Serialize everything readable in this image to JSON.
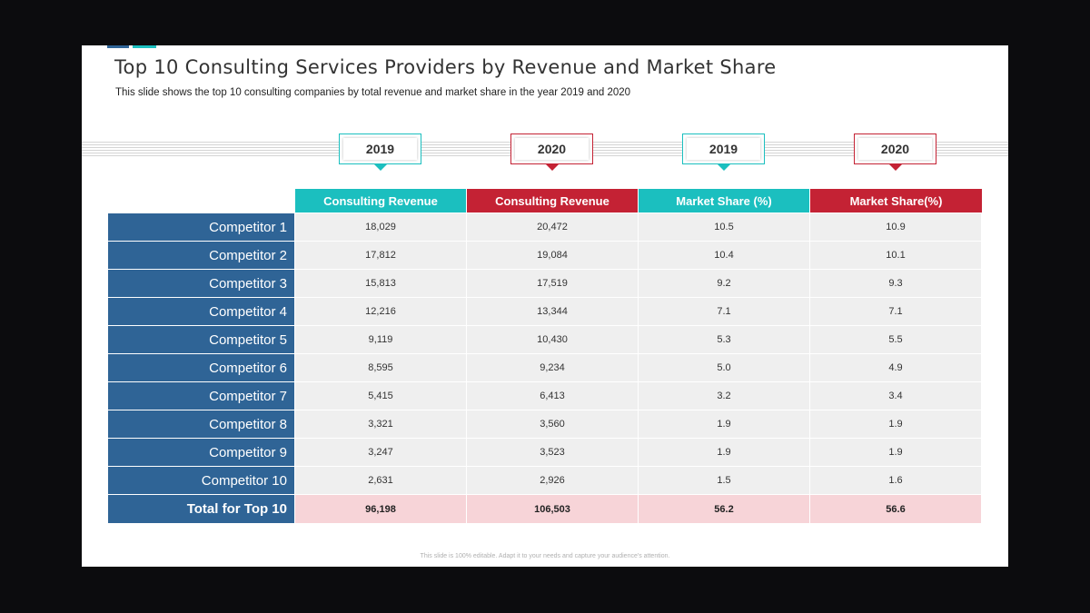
{
  "slide": {
    "title": "Top 10 Consulting Services Providers by Revenue and Market Share",
    "subtitle": "This slide shows the top 10 consulting companies by total revenue and market share in the year 2019 and 2020",
    "footer": "This slide is 100% editable. Adapt it to your needs and capture your audience's attention."
  },
  "colors": {
    "teal": "#1bbfbf",
    "red": "#c42234",
    "blue": "#2f6496",
    "total_fill": "#f7d4d8"
  },
  "table": {
    "columns": [
      {
        "year": "2019",
        "header": "Consulting Revenue",
        "color": "teal"
      },
      {
        "year": "2020",
        "header": "Consulting Revenue",
        "color": "red"
      },
      {
        "year": "2019",
        "header": "Market Share (%)",
        "color": "teal"
      },
      {
        "year": "2020",
        "header": "Market Share(%)",
        "color": "red"
      }
    ],
    "rows": [
      {
        "label": "Competitor 1",
        "values": [
          "18,029",
          "20,472",
          "10.5",
          "10.9"
        ]
      },
      {
        "label": "Competitor 2",
        "values": [
          "17,812",
          "19,084",
          "10.4",
          "10.1"
        ]
      },
      {
        "label": "Competitor 3",
        "values": [
          "15,813",
          "17,519",
          "9.2",
          "9.3"
        ]
      },
      {
        "label": "Competitor 4",
        "values": [
          "12,216",
          "13,344",
          "7.1",
          "7.1"
        ]
      },
      {
        "label": "Competitor 5",
        "values": [
          "9,119",
          "10,430",
          "5.3",
          "5.5"
        ]
      },
      {
        "label": "Competitor 6",
        "values": [
          "8,595",
          "9,234",
          "5.0",
          "4.9"
        ]
      },
      {
        "label": "Competitor 7",
        "values": [
          "5,415",
          "6,413",
          "3.2",
          "3.4"
        ]
      },
      {
        "label": "Competitor 8",
        "values": [
          "3,321",
          "3,560",
          "1.9",
          "1.9"
        ]
      },
      {
        "label": "Competitor 9",
        "values": [
          "3,247",
          "3,523",
          "1.9",
          "1.9"
        ]
      },
      {
        "label": "Competitor 10",
        "values": [
          "2,631",
          "2,926",
          "1.5",
          "1.6"
        ]
      }
    ],
    "total": {
      "label": "Total for Top 10",
      "values": [
        "96,198",
        "106,503",
        "56.2",
        "56.6"
      ]
    }
  }
}
